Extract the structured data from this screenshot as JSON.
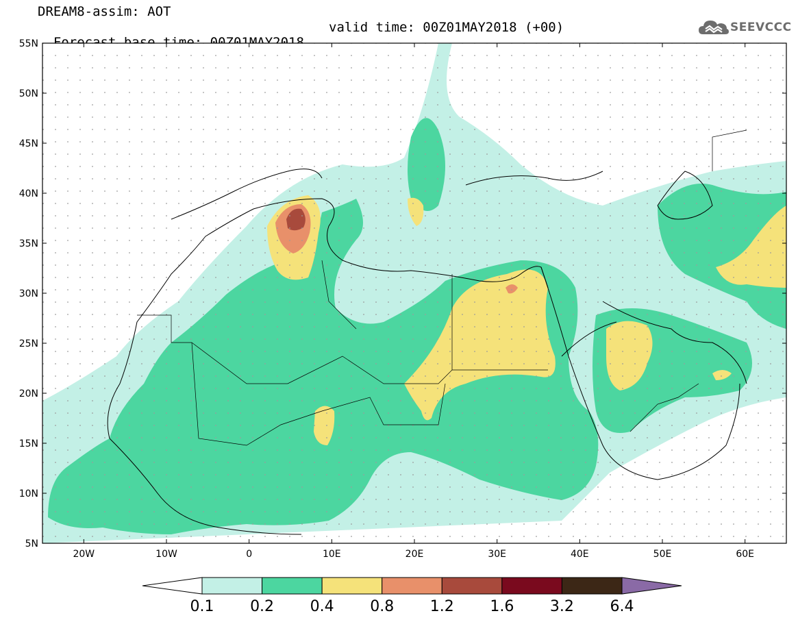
{
  "title": {
    "line1": "DREAM8-assim: AOT",
    "line2_base": "Forecast base time: 00Z01MAY2018",
    "line2_valid": "valid time: 00Z01MAY2018 (+00)"
  },
  "logo": {
    "text": "SEEVCCC",
    "icon": "cloud-icon",
    "color": "#6d6d6d"
  },
  "map": {
    "lat_labels": [
      "55N",
      "50N",
      "45N",
      "40N",
      "35N",
      "30N",
      "25N",
      "20N",
      "15N",
      "10N",
      "5N"
    ],
    "lon_labels": [
      "20W",
      "10W",
      "0",
      "10E",
      "20E",
      "30E",
      "40E",
      "50E",
      "60E"
    ],
    "lon_range": [
      -25,
      65
    ],
    "lat_range": [
      5,
      55
    ]
  },
  "colorbar": {
    "labels": [
      "0.1",
      "0.2",
      "0.4",
      "0.8",
      "1.2",
      "1.6",
      "3.2",
      "6.4"
    ],
    "colors": [
      "#ffffff",
      "#c3f0e6",
      "#4cd6a0",
      "#f5e27a",
      "#e8906a",
      "#a84a3c",
      "#7a0a1e",
      "#3c2716",
      "#8a6aa6"
    ]
  }
}
